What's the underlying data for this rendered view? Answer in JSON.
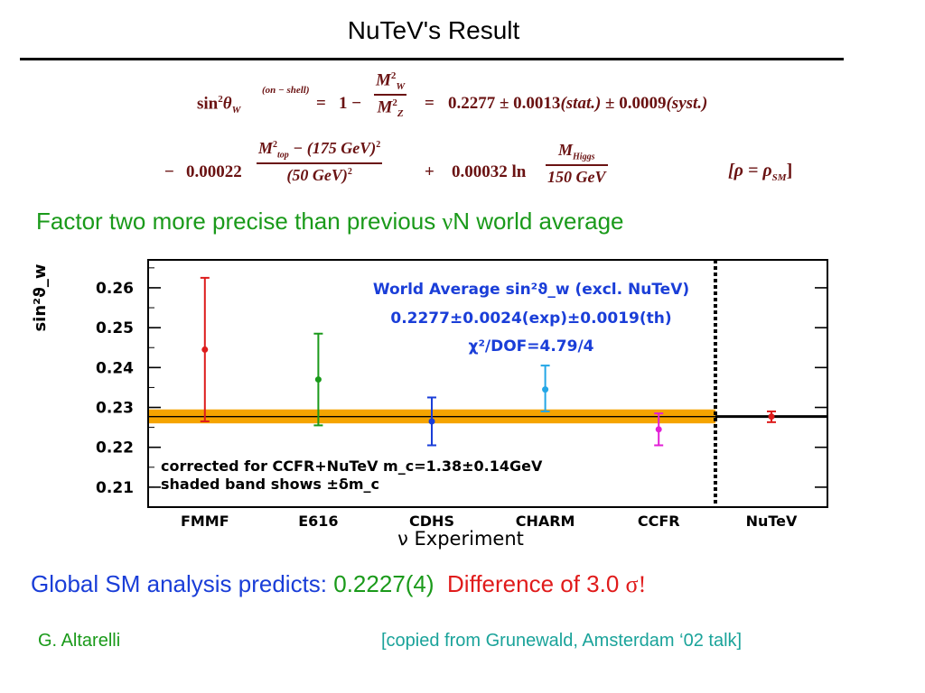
{
  "slide": {
    "title": "NuTeV's Result",
    "factor_text": "Factor two more precise than previous ",
    "factor_greek": "ν",
    "factor_tail": "N world average",
    "global_label": "Global SM analysis predicts: ",
    "global_value": "0.2227(4)",
    "difference_text": "Difference of 3.0 ",
    "difference_sigma": "σ!",
    "footer_left": "G. Altarelli",
    "footer_right": "[copied from Grunewald, Amsterdam ‘02 talk]"
  },
  "equation": {
    "sin2": "sin",
    "sup2": "2",
    "theta": "θ",
    "sub_w": "W",
    "onshell": "(on − shell)",
    "eq1": "=",
    "one_minus": "1 −",
    "mw": "M",
    "mz": "M",
    "eq2": "=",
    "value": "0.2277 ± 0.0013",
    "stat": "(stat.)",
    "pm2": "± 0.0009",
    "syst": "(syst.)",
    "minus": "−",
    "coef1": "0.00022",
    "top_num": "M",
    "top_sub": "top",
    "top_rest": " − (175 GeV)",
    "top_den": "(50 GeV)",
    "plus": "+",
    "coef2": "0.00032 ln",
    "higgs_num": "M",
    "higgs_sub": "Higgs",
    "higgs_den": "150 GeV",
    "rho": "[ρ = ρ",
    "rho_sub": "SM",
    "rho_close": "]"
  },
  "chart_data": {
    "type": "scatter",
    "title": "",
    "xlabel": "ν Experiment",
    "ylabel": "sin²ϑ_w",
    "ylim": [
      0.205,
      0.267
    ],
    "yticks": [
      0.21,
      0.22,
      0.23,
      0.24,
      0.25,
      0.26
    ],
    "categories": [
      "FMMF",
      "E616",
      "CDHS",
      "CHARM",
      "CCFR",
      "NuTeV"
    ],
    "points": [
      {
        "label": "FMMF",
        "value": 0.2445,
        "low": 0.2265,
        "high": 0.2625,
        "color": "#dd1c1c"
      },
      {
        "label": "E616",
        "value": 0.237,
        "low": 0.2255,
        "high": 0.2485,
        "color": "#1a9a1a"
      },
      {
        "label": "CDHS",
        "value": 0.2265,
        "low": 0.2205,
        "high": 0.2325,
        "color": "#1a3ed8"
      },
      {
        "label": "CHARM",
        "value": 0.2345,
        "low": 0.229,
        "high": 0.2405,
        "color": "#23a6e6"
      },
      {
        "label": "CCFR",
        "value": 0.2245,
        "low": 0.2205,
        "high": 0.2285,
        "color": "#e21ed6"
      },
      {
        "label": "NuTeV",
        "value": 0.2277,
        "low": 0.2263,
        "high": 0.229,
        "color": "#dd1c1c"
      }
    ],
    "world_average": {
      "value": 0.2277,
      "band_low": 0.226,
      "band_high": 0.2295,
      "band_color": "#f5a400"
    },
    "annotations": {
      "wa_line1": "World Average sin²ϑ_w (excl. NuTeV)",
      "wa_line2": "0.2277±0.0024(exp)±0.0019(th)",
      "wa_line3": "χ²/DOF=4.79/4",
      "note_line1": "corrected for CCFR+NuTeV m_c=1.38±0.14GeV",
      "note_line2": "shaded band shows ±δm_c"
    },
    "grid": false,
    "colors": {
      "annotation": "#1a3ed8",
      "axis": "#000000"
    }
  }
}
